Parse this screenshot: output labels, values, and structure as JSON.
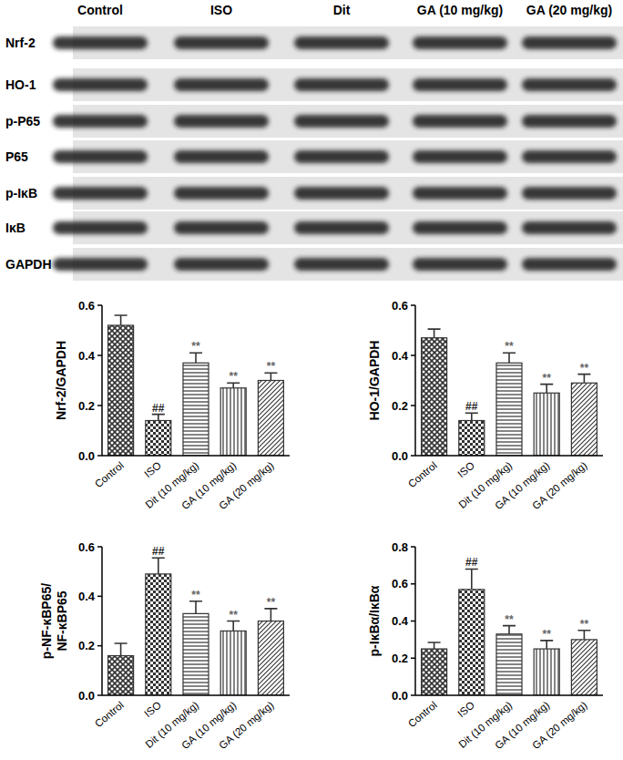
{
  "blot": {
    "columns": [
      "Control",
      "ISO",
      "Dit",
      "GA (10 mg/kg)",
      "GA (20 mg/kg)"
    ],
    "rows": [
      "Nrf-2",
      "HO-1",
      "p-P65",
      "P65",
      "p-IκB",
      "IκB",
      "GAPDH"
    ]
  },
  "chart_data": [
    {
      "type": "bar",
      "ylabel": "Nrf-2/GAPDH",
      "categories": [
        "Control",
        "ISO",
        "Dit (10 mg/kg)",
        "GA (10 mg/kg)",
        "GA (20 mg/kg)"
      ],
      "values": [
        0.52,
        0.14,
        0.37,
        0.27,
        0.3
      ],
      "errors": [
        0.04,
        0.025,
        0.04,
        0.02,
        0.03
      ],
      "significance": [
        null,
        "##",
        "**",
        "**",
        "**"
      ],
      "color": "#333333",
      "ylim": [
        0,
        0.6
      ],
      "yticks": [
        {
          "value": 0,
          "label": "0.0"
        },
        {
          "value": 0.2,
          "label": "0.2"
        },
        {
          "value": 0.4,
          "label": "0.4"
        },
        {
          "value": 0.6,
          "label": "0.6"
        }
      ]
    },
    {
      "type": "bar",
      "ylabel": "HO-1/GAPDH",
      "categories": [
        "Control",
        "ISO",
        "Dit (10 mg/kg)",
        "GA (10 mg/kg)",
        "GA (20 mg/kg)"
      ],
      "values": [
        0.47,
        0.14,
        0.37,
        0.25,
        0.29
      ],
      "errors": [
        0.035,
        0.03,
        0.04,
        0.035,
        0.035
      ],
      "significance": [
        null,
        "##",
        "**",
        "**",
        "**"
      ],
      "color": "#333333",
      "ylim": [
        0,
        0.6
      ],
      "yticks": [
        {
          "value": 0,
          "label": "0.0"
        },
        {
          "value": 0.2,
          "label": "0.2"
        },
        {
          "value": 0.4,
          "label": "0.4"
        },
        {
          "value": 0.6,
          "label": "0.6"
        }
      ]
    },
    {
      "type": "bar",
      "ylabel": "p-NF-κBP65/NF-κBP65",
      "categories": [
        "Control",
        "ISO",
        "Dit (10 mg/kg)",
        "GA (10 mg/kg)",
        "GA (20 mg/kg)"
      ],
      "values": [
        0.16,
        0.49,
        0.33,
        0.26,
        0.3
      ],
      "errors": [
        0.05,
        0.065,
        0.05,
        0.04,
        0.05
      ],
      "significance": [
        null,
        "##",
        "**",
        "**",
        "**"
      ],
      "color": "#333333",
      "ylim": [
        0,
        0.6
      ],
      "yticks": [
        {
          "value": 0,
          "label": "0.0"
        },
        {
          "value": 0.2,
          "label": "0.2"
        },
        {
          "value": 0.4,
          "label": "0.4"
        },
        {
          "value": 0.6,
          "label": "0.6"
        }
      ]
    },
    {
      "type": "bar",
      "ylabel": "p-IκBα/IκBα",
      "categories": [
        "Control",
        "ISO",
        "Dit (10 mg/kg)",
        "GA (10 mg/kg)",
        "GA (20 mg/kg)"
      ],
      "values": [
        0.25,
        0.57,
        0.33,
        0.25,
        0.3
      ],
      "errors": [
        0.035,
        0.11,
        0.045,
        0.045,
        0.05
      ],
      "significance": [
        null,
        "##",
        "**",
        "**",
        "**"
      ],
      "color": "#333333",
      "ylim": [
        0,
        0.8
      ],
      "yticks": [
        {
          "value": 0,
          "label": "0.0"
        },
        {
          "value": 0.2,
          "label": "0.2"
        },
        {
          "value": 0.4,
          "label": "0.4"
        },
        {
          "value": 0.6,
          "label": "0.6"
        },
        {
          "value": 0.8,
          "label": "0.8"
        }
      ]
    }
  ]
}
